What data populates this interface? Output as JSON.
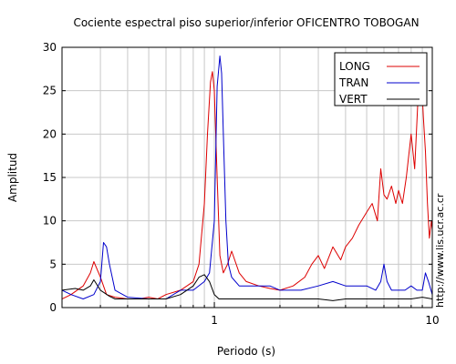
{
  "chart_data": {
    "type": "line",
    "title": "Cociente espectral piso superior/inferior OFICENTRO TOBOGAN",
    "xlabel": "Periodo (s)",
    "ylabel": "Amplitud",
    "x_scale": "log",
    "xlim": [
      0.2,
      10
    ],
    "ylim": [
      0,
      30
    ],
    "x_ticks": [
      {
        "value": 1,
        "label": "1"
      },
      {
        "value": 10,
        "label": "10"
      }
    ],
    "y_ticks": [
      0,
      5,
      10,
      15,
      20,
      25,
      30
    ],
    "grid": true,
    "legend_position": "top-right",
    "side_note": "http://www.lis.ucr.ac.cr",
    "series": [
      {
        "name": "LONG",
        "color": "#dd0000",
        "x": [
          0.2,
          0.22,
          0.25,
          0.27,
          0.28,
          0.3,
          0.32,
          0.35,
          0.4,
          0.45,
          0.5,
          0.55,
          0.6,
          0.7,
          0.8,
          0.85,
          0.9,
          0.93,
          0.96,
          0.98,
          1.0,
          1.03,
          1.06,
          1.1,
          1.15,
          1.2,
          1.3,
          1.4,
          1.6,
          1.8,
          2.0,
          2.3,
          2.6,
          2.8,
          3.0,
          3.2,
          3.5,
          3.8,
          4.0,
          4.3,
          4.6,
          5.0,
          5.3,
          5.6,
          5.8,
          6.0,
          6.2,
          6.5,
          6.8,
          7.0,
          7.3,
          7.6,
          8.0,
          8.3,
          8.6,
          8.9,
          9.1,
          9.3,
          9.5,
          9.7,
          9.9,
          10.0
        ],
        "y": [
          1.0,
          1.5,
          2.5,
          4.0,
          5.3,
          3.5,
          1.5,
          1.2,
          1.0,
          1.0,
          1.2,
          1.0,
          1.5,
          2.0,
          3.0,
          5.0,
          12.0,
          20.0,
          26.0,
          27.2,
          25.0,
          15.0,
          6.0,
          4.0,
          5.0,
          6.5,
          4.0,
          3.0,
          2.5,
          2.2,
          2.0,
          2.5,
          3.5,
          5.0,
          6.0,
          4.5,
          7.0,
          5.5,
          7.0,
          8.0,
          9.5,
          11.0,
          12.0,
          10.0,
          16.0,
          13.0,
          12.5,
          14.0,
          12.0,
          13.5,
          12.0,
          15.0,
          20.0,
          16.0,
          24.0,
          27.0,
          22.0,
          18.0,
          12.0,
          8.0,
          10.0,
          9.0
        ]
      },
      {
        "name": "TRAN",
        "color": "#0000cc",
        "x": [
          0.2,
          0.22,
          0.25,
          0.28,
          0.3,
          0.31,
          0.32,
          0.33,
          0.35,
          0.4,
          0.5,
          0.6,
          0.7,
          0.8,
          0.9,
          0.95,
          1.0,
          1.03,
          1.06,
          1.08,
          1.1,
          1.13,
          1.16,
          1.2,
          1.3,
          1.5,
          1.8,
          2.0,
          2.5,
          3.0,
          3.5,
          4.0,
          4.5,
          5.0,
          5.5,
          5.8,
          6.0,
          6.2,
          6.5,
          7.0,
          7.5,
          8.0,
          8.5,
          9.0,
          9.3,
          9.6,
          10.0
        ],
        "y": [
          2.0,
          1.5,
          1.0,
          1.5,
          3.0,
          7.5,
          7.0,
          5.0,
          2.0,
          1.2,
          1.0,
          1.0,
          2.0,
          2.0,
          3.0,
          4.0,
          10.0,
          25.5,
          29.0,
          27.0,
          20.0,
          10.0,
          5.0,
          3.5,
          2.5,
          2.5,
          2.5,
          2.0,
          2.0,
          2.5,
          3.0,
          2.5,
          2.5,
          2.5,
          2.0,
          3.0,
          5.0,
          3.0,
          2.0,
          2.0,
          2.0,
          2.5,
          2.0,
          2.0,
          4.0,
          3.0,
          1.5
        ]
      },
      {
        "name": "VERT",
        "color": "#000000",
        "x": [
          0.2,
          0.23,
          0.25,
          0.27,
          0.28,
          0.3,
          0.33,
          0.35,
          0.4,
          0.45,
          0.5,
          0.6,
          0.7,
          0.8,
          0.85,
          0.9,
          0.95,
          1.0,
          1.05,
          1.1,
          1.2,
          1.5,
          2.0,
          2.5,
          3.0,
          3.5,
          4.0,
          5.0,
          6.0,
          7.0,
          8.0,
          9.0,
          10.0
        ],
        "y": [
          2.0,
          2.2,
          2.0,
          2.5,
          3.2,
          2.0,
          1.3,
          1.0,
          1.0,
          1.0,
          1.0,
          1.0,
          1.5,
          2.5,
          3.5,
          3.8,
          3.0,
          1.5,
          1.0,
          1.0,
          1.0,
          1.0,
          1.0,
          1.0,
          1.0,
          0.8,
          1.0,
          1.0,
          1.0,
          1.0,
          1.0,
          1.2,
          1.0
        ]
      }
    ]
  }
}
